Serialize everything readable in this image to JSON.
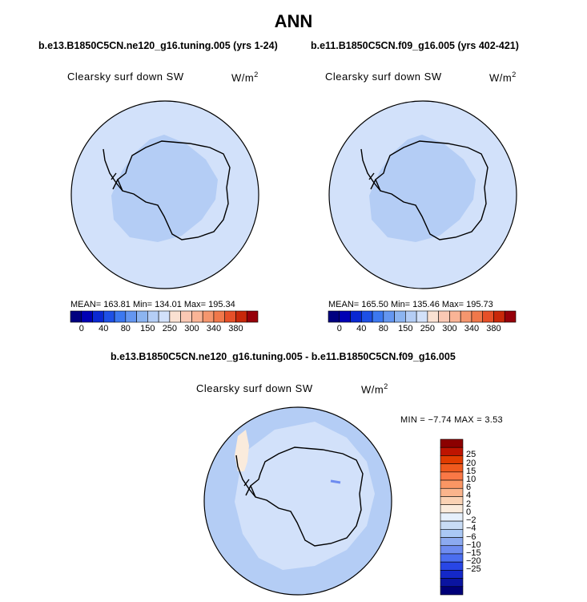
{
  "header": {
    "title": "ANN"
  },
  "panels": [
    {
      "case_title": "b.e13.B1850C5CN.ne120_g16.tuning.005 (yrs 1-24)",
      "field": "Clearsky surf down SW",
      "units": "W/m",
      "stats": "MEAN= 163.81   Min= 134.01   Max= 195.34"
    },
    {
      "case_title": "b.e11.B1850C5CN.f09_g16.005 (yrs 402-421)",
      "field": "Clearsky surf down SW",
      "units": "W/m",
      "stats": "MEAN= 165.50   Min= 135.46   Max= 195.73"
    }
  ],
  "diff_panel": {
    "title": "b.e13.B1850C5CN.ne120_g16.tuning.005 - b.e11.B1850C5CN.f09_g16.005",
    "field": "Clearsky surf down SW",
    "units": "W/m",
    "stats": "MIN =  −7.74  MAX =   3.53"
  },
  "colorbar": {
    "colors": [
      "#000080",
      "#0000b4",
      "#0a28d2",
      "#1e50e6",
      "#3c78f0",
      "#6496f0",
      "#8cb4f0",
      "#b4cdf5",
      "#d2e1fa",
      "#fae1d2",
      "#fac8b4",
      "#fab496",
      "#f5966e",
      "#f0784b",
      "#e65028",
      "#c8280a",
      "#96000a"
    ],
    "ticks": [
      "0",
      "40",
      "80",
      "150",
      "250",
      "300",
      "340",
      "380"
    ],
    "tick_slots": [
      1,
      3,
      5,
      7,
      9,
      11,
      13,
      15
    ]
  },
  "diff_colorbar": {
    "colors": [
      "#8c0000",
      "#be1400",
      "#e13c00",
      "#f05a1e",
      "#fa7846",
      "#fa9664",
      "#fab48c",
      "#fad2b4",
      "#faebdc",
      "#e6f0fc",
      "#c8dcf5",
      "#aac8f5",
      "#8caaf0",
      "#6e8cf0",
      "#4b6ef0",
      "#2846e6",
      "#1428c8",
      "#0a14a0",
      "#000078"
    ],
    "ticks": [
      "25",
      "20",
      "15",
      "10",
      "6",
      "4",
      "2",
      "0",
      "−2",
      "−4",
      "−6",
      "−10",
      "−15",
      "−20",
      "−25"
    ]
  },
  "map_colors": {
    "ocean": "#d2e1fa",
    "interior": "#b4cdf5",
    "diff_base": "#d2e1fa",
    "diff_pos": "#faebdc",
    "diff_neg": "#b4cdf5"
  }
}
